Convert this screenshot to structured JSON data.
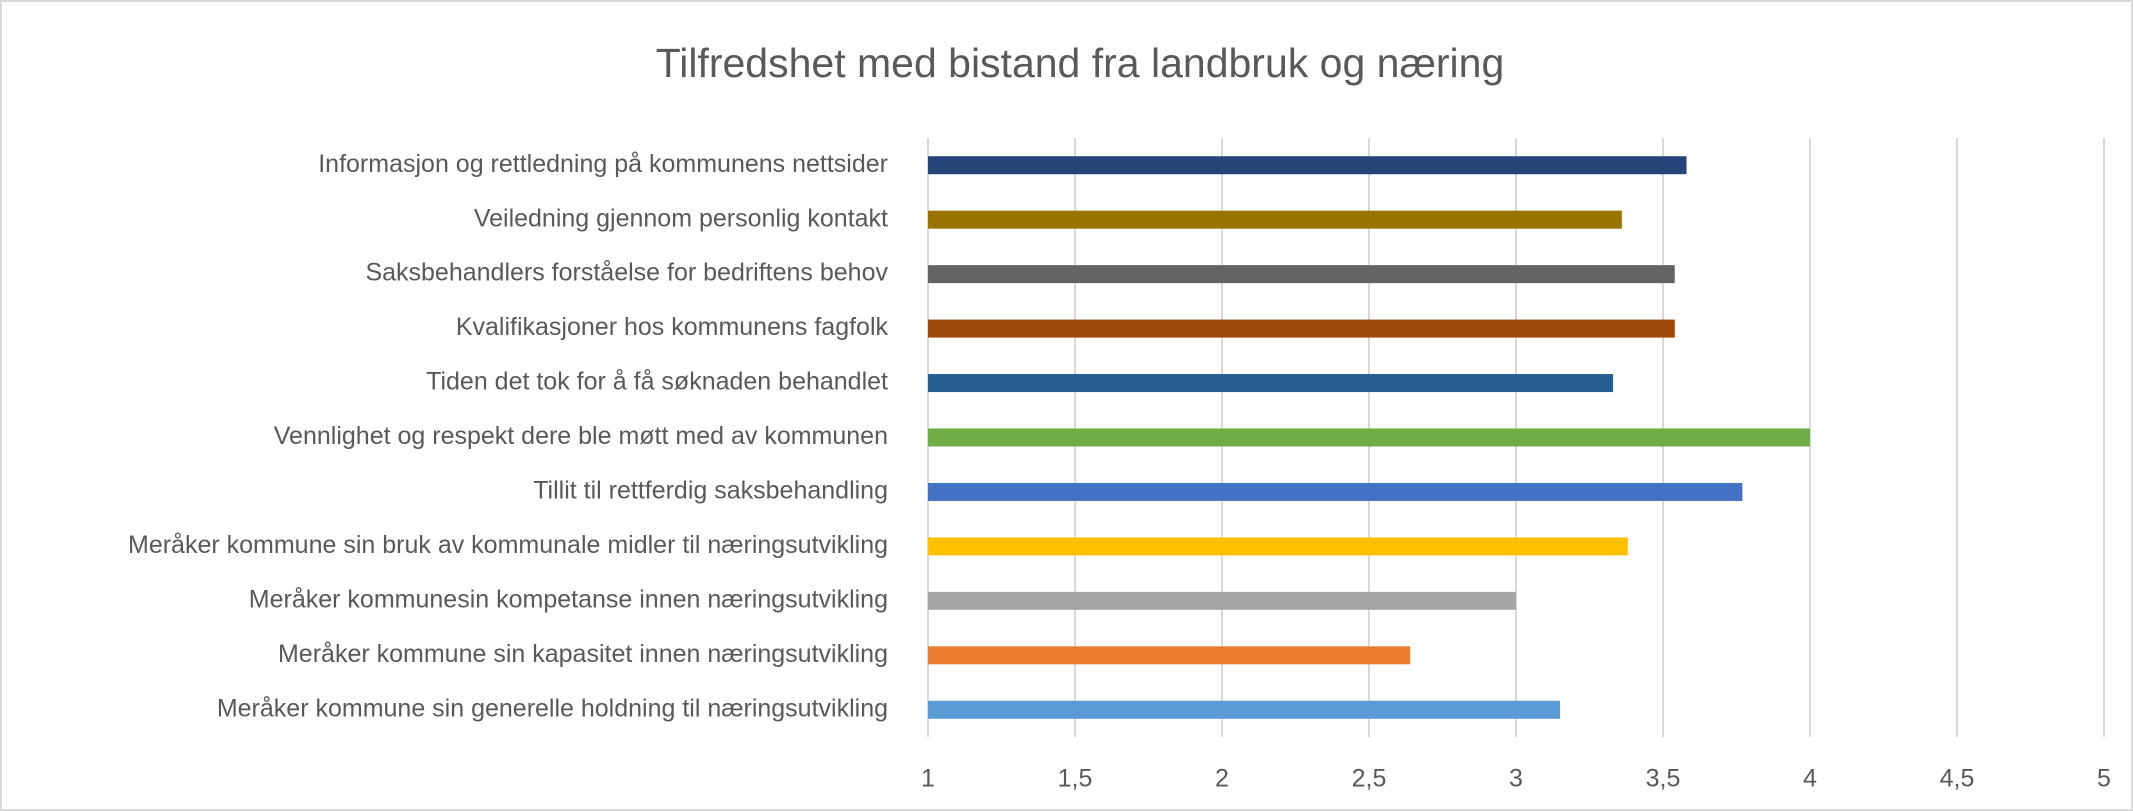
{
  "chart_data": {
    "type": "bar",
    "orientation": "horizontal",
    "title": "Tilfredshet med bistand fra landbruk og næring",
    "categories": [
      "Informasjon og rettledning på kommunens nettsider",
      "Veiledning gjennom personlig kontakt",
      "Saksbehandlers forståelse for bedriftens behov",
      "Kvalifikasjoner hos kommunens fagfolk",
      "Tiden det tok for å få søknaden behandlet",
      "Vennlighet og respekt dere ble møtt med av kommunen",
      "Tillit til rettferdig saksbehandling",
      "Meråker kommune sin bruk av kommunale midler til næringsutvikling",
      "Meråker kommunesin kompetanse innen næringsutvikling",
      "Meråker kommune sin kapasitet innen næringsutvikling",
      "Meråker kommune sin generelle holdning til næringsutvikling"
    ],
    "values": [
      3.58,
      3.36,
      3.54,
      3.54,
      3.33,
      4.0,
      3.77,
      3.38,
      3.0,
      2.64,
      3.15
    ],
    "colors": [
      "#264478",
      "#997300",
      "#636363",
      "#9e480e",
      "#255e91",
      "#70ad47",
      "#4472c4",
      "#ffc000",
      "#a5a5a5",
      "#ed7d31",
      "#5b9bd5"
    ],
    "xlim": [
      1,
      5
    ],
    "xticks": [
      1,
      {
        "value": 1.5,
        "label": "1,5"
      },
      2,
      {
        "value": 2.5,
        "label": "2,5"
      },
      3,
      {
        "value": 3.5,
        "label": "3,5"
      },
      4,
      {
        "value": 4.5,
        "label": "4,5"
      },
      5
    ],
    "grid": true
  }
}
